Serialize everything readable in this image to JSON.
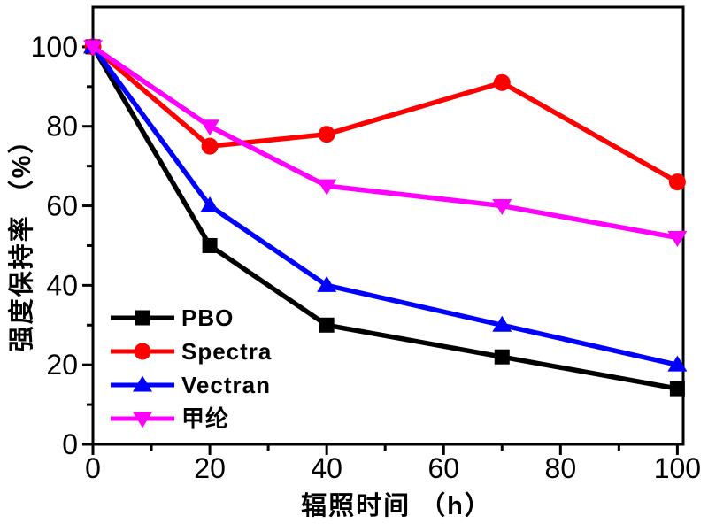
{
  "figure": {
    "background": "#ffffff",
    "frame_color": "#000000"
  },
  "chart_data": {
    "type": "line",
    "title": "",
    "xlabel": "辐照时间 （h）",
    "ylabel": "强度保持率 （%）",
    "x": [
      0,
      20,
      40,
      70,
      100
    ],
    "series": [
      {
        "name": "PBO",
        "color": "#000000",
        "marker": "square",
        "values": [
          100,
          50,
          30,
          22,
          14
        ]
      },
      {
        "name": "Spectra",
        "color": "#ff0000",
        "marker": "circle",
        "values": [
          100,
          75,
          78,
          91,
          66
        ]
      },
      {
        "name": "Vectran",
        "color": "#0000ff",
        "marker": "triangle-up",
        "values": [
          100,
          60,
          40,
          30,
          20
        ]
      },
      {
        "name": "甲纶",
        "color": "#ff00ff",
        "marker": "triangle-down",
        "values": [
          100,
          80,
          65,
          60,
          52
        ]
      }
    ],
    "xlim": [
      0,
      101
    ],
    "ylim": [
      0,
      110
    ],
    "xticks": [
      0,
      20,
      40,
      60,
      80,
      100
    ],
    "yticks": [
      0,
      20,
      40,
      60,
      80,
      100
    ],
    "minor_tick_step": 10,
    "grid": false,
    "legend_position": "lower-left"
  }
}
